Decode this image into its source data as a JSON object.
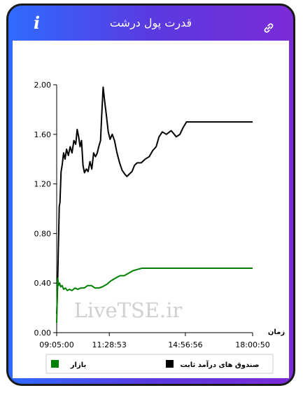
{
  "header": {
    "title": "قدرت پول درشت",
    "info_icon": "info-icon",
    "link_icon": "link-icon"
  },
  "watermark": "LiveTSE.ir",
  "chart_data": {
    "type": "line",
    "xlabel": "زمان",
    "ylabel": "",
    "ylim": [
      0,
      2.0
    ],
    "yticks": [
      "0.00",
      "0.40",
      "0.80",
      "1.20",
      "1.60",
      "2.00"
    ],
    "xticks": [
      "09:05:00",
      "11:28:53",
      "14:56:56",
      "18:00:50"
    ],
    "x_range": [
      "09:05:00",
      "18:00:50"
    ],
    "grid": false,
    "legend_position": "bottom",
    "series": [
      {
        "name": "صندوق های درآمد ثابت",
        "color": "#000000",
        "points": [
          [
            "09:05:00",
            0.15
          ],
          [
            "09:07:00",
            0.3
          ],
          [
            "09:09:00",
            0.6
          ],
          [
            "09:12:00",
            1.02
          ],
          [
            "09:14:00",
            1.05
          ],
          [
            "09:17:00",
            1.3
          ],
          [
            "09:20:00",
            1.35
          ],
          [
            "09:24:00",
            1.45
          ],
          [
            "09:28:00",
            1.4
          ],
          [
            "09:32:00",
            1.48
          ],
          [
            "09:37:00",
            1.43
          ],
          [
            "09:42:00",
            1.5
          ],
          [
            "09:47:00",
            1.45
          ],
          [
            "09:52:00",
            1.55
          ],
          [
            "09:57:00",
            1.52
          ],
          [
            "10:01:00",
            1.64
          ],
          [
            "10:05:00",
            1.58
          ],
          [
            "10:09:00",
            1.5
          ],
          [
            "10:13:00",
            1.55
          ],
          [
            "10:17:00",
            1.35
          ],
          [
            "10:21:00",
            1.29
          ],
          [
            "10:26:00",
            1.32
          ],
          [
            "10:31:00",
            1.3
          ],
          [
            "10:36:00",
            1.38
          ],
          [
            "10:41:00",
            1.32
          ],
          [
            "10:46:00",
            1.45
          ],
          [
            "10:51:00",
            1.42
          ],
          [
            "10:56:00",
            1.45
          ],
          [
            "11:00:00",
            1.5
          ],
          [
            "11:05:00",
            1.55
          ],
          [
            "11:08:00",
            1.75
          ],
          [
            "11:12:00",
            1.98
          ],
          [
            "11:16:00",
            1.87
          ],
          [
            "11:21:00",
            1.75
          ],
          [
            "11:26:00",
            1.62
          ],
          [
            "11:31:00",
            1.56
          ],
          [
            "11:37:00",
            1.6
          ],
          [
            "11:43:00",
            1.55
          ],
          [
            "11:50:00",
            1.45
          ],
          [
            "11:57:00",
            1.37
          ],
          [
            "12:04:00",
            1.31
          ],
          [
            "12:11:00",
            1.28
          ],
          [
            "12:17:00",
            1.26
          ],
          [
            "12:24:00",
            1.28
          ],
          [
            "12:31:00",
            1.3
          ],
          [
            "12:38:00",
            1.35
          ],
          [
            "12:45:00",
            1.37
          ],
          [
            "12:56:00",
            1.37
          ],
          [
            "13:07:00",
            1.4
          ],
          [
            "13:18:00",
            1.42
          ],
          [
            "13:28:00",
            1.47
          ],
          [
            "13:37:00",
            1.5
          ],
          [
            "13:45:00",
            1.58
          ],
          [
            "13:54:00",
            1.62
          ],
          [
            "14:05:00",
            1.6
          ],
          [
            "14:18:00",
            1.63
          ],
          [
            "14:32:00",
            1.58
          ],
          [
            "14:42:00",
            1.6
          ],
          [
            "14:50:00",
            1.65
          ],
          [
            "15:00:00",
            1.7
          ],
          [
            "16:00:00",
            1.7
          ],
          [
            "17:00:00",
            1.7
          ],
          [
            "18:00:50",
            1.7
          ]
        ]
      },
      {
        "name": "بازار",
        "color": "#008000",
        "points": [
          [
            "09:05:00",
            0.08
          ],
          [
            "09:06:00",
            0.2
          ],
          [
            "09:07:00",
            0.4
          ],
          [
            "09:08:00",
            0.44
          ],
          [
            "09:10:00",
            0.38
          ],
          [
            "09:13:00",
            0.4
          ],
          [
            "09:16:00",
            0.37
          ],
          [
            "09:20:00",
            0.38
          ],
          [
            "09:24:00",
            0.35
          ],
          [
            "09:29:00",
            0.36
          ],
          [
            "09:34:00",
            0.34
          ],
          [
            "09:40:00",
            0.35
          ],
          [
            "09:47:00",
            0.34
          ],
          [
            "09:55:00",
            0.36
          ],
          [
            "10:03:00",
            0.35
          ],
          [
            "10:10:00",
            0.36
          ],
          [
            "10:20:00",
            0.36
          ],
          [
            "10:30:00",
            0.38
          ],
          [
            "10:40:00",
            0.38
          ],
          [
            "10:50:00",
            0.36
          ],
          [
            "11:00:00",
            0.36
          ],
          [
            "11:10:00",
            0.37
          ],
          [
            "11:22:00",
            0.39
          ],
          [
            "11:34:00",
            0.42
          ],
          [
            "11:46:00",
            0.44
          ],
          [
            "11:58:00",
            0.46
          ],
          [
            "12:10:00",
            0.46
          ],
          [
            "12:22:00",
            0.48
          ],
          [
            "12:34:00",
            0.5
          ],
          [
            "12:46:00",
            0.51
          ],
          [
            "12:58:00",
            0.52
          ],
          [
            "13:30:00",
            0.52
          ],
          [
            "14:00:00",
            0.52
          ],
          [
            "15:00:00",
            0.52
          ],
          [
            "16:00:00",
            0.52
          ],
          [
            "17:00:00",
            0.52
          ],
          [
            "18:00:50",
            0.52
          ]
        ]
      }
    ]
  }
}
